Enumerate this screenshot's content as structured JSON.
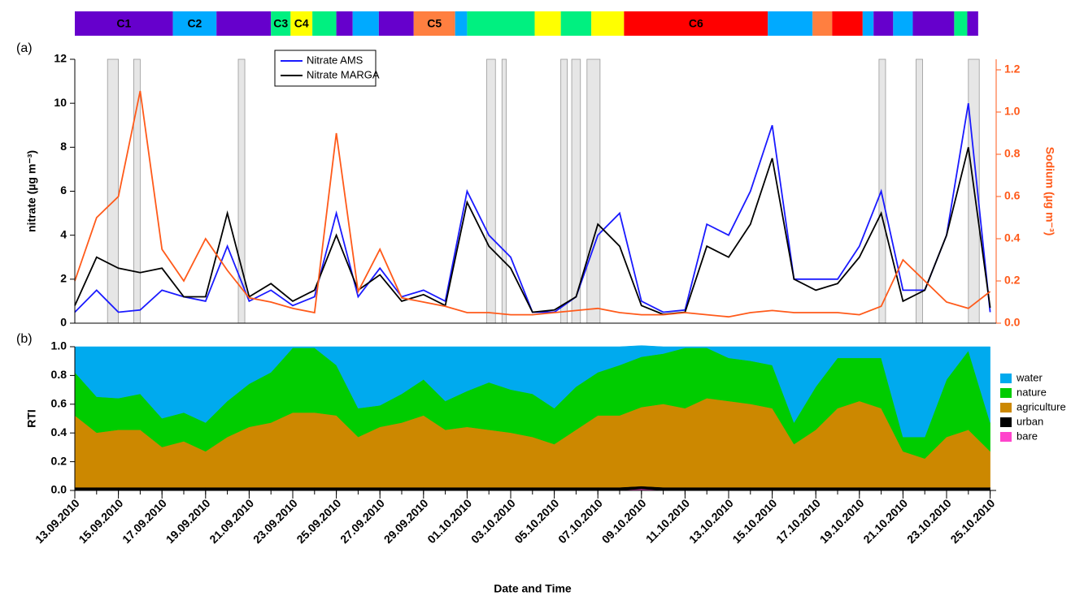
{
  "chart_data": [
    {
      "type": "timeline",
      "segments": [
        {
          "name": "C1",
          "color": "#6600cc",
          "days": 4.5
        },
        {
          "name": "C2",
          "color": "#00aaff",
          "days": 2.0
        },
        {
          "name": null,
          "color": "#6600cc",
          "days": 2.5
        },
        {
          "name": "C3",
          "color": "#00f080",
          "days": 0.9
        },
        {
          "name": "C4",
          "color": "#ffff00",
          "days": 1.0
        },
        {
          "name": null,
          "color": "#00f080",
          "days": 1.1
        },
        {
          "name": null,
          "color": "#6600cc",
          "days": 0.75
        },
        {
          "name": null,
          "color": "#00aaff",
          "days": 1.2
        },
        {
          "name": null,
          "color": "#6600cc",
          "days": 1.6
        },
        {
          "name": "C5",
          "color": "#ff7f40",
          "days": 1.9
        },
        {
          "name": null,
          "color": "#00aaff",
          "days": 0.55
        },
        {
          "name": null,
          "color": "#00f080",
          "days": 3.1
        },
        {
          "name": null,
          "color": "#ffff00",
          "days": 1.2
        },
        {
          "name": null,
          "color": "#00f080",
          "days": 1.4
        },
        {
          "name": null,
          "color": "#ffff00",
          "days": 1.5
        },
        {
          "name": "C6",
          "color": "#ff0000",
          "days": 6.6
        },
        {
          "name": null,
          "color": "#00aaff",
          "days": 2.05
        },
        {
          "name": null,
          "color": "#ff7f40",
          "days": 0.9
        },
        {
          "name": null,
          "color": "#ff0000",
          "days": 1.4
        },
        {
          "name": null,
          "color": "#00aaff",
          "days": 0.5
        },
        {
          "name": null,
          "color": "#6600cc",
          "days": 0.9
        },
        {
          "name": null,
          "color": "#00aaff",
          "days": 0.9
        },
        {
          "name": null,
          "color": "#6600cc",
          "days": 1.9
        },
        {
          "name": null,
          "color": "#00f080",
          "days": 0.6
        },
        {
          "name": null,
          "color": "#6600cc",
          "days": 0.5
        }
      ]
    },
    {
      "type": "line",
      "panel_label": "(a)",
      "y_label": "nitrate (µg m⁻³)",
      "y2_label": "Sodium (µg m⁻³)",
      "x": [
        "13.09.2010",
        "14.09.2010",
        "15.09.2010",
        "16.09.2010",
        "17.09.2010",
        "18.09.2010",
        "19.09.2010",
        "20.09.2010",
        "21.09.2010",
        "22.09.2010",
        "23.09.2010",
        "24.09.2010",
        "25.09.2010",
        "26.09.2010",
        "27.09.2010",
        "28.09.2010",
        "29.09.2010",
        "30.09.2010",
        "01.10.2010",
        "02.10.2010",
        "03.10.2010",
        "04.10.2010",
        "05.10.2010",
        "06.10.2010",
        "07.10.2010",
        "08.10.2010",
        "09.10.2010",
        "10.10.2010",
        "11.10.2010",
        "12.10.2010",
        "13.10.2010",
        "14.10.2010",
        "15.10.2010",
        "16.10.2010",
        "17.10.2010",
        "18.10.2010",
        "19.10.2010",
        "20.10.2010",
        "21.10.2010",
        "22.10.2010",
        "23.10.2010",
        "24.10.2010",
        "25.10.2010"
      ],
      "ylim": [
        0,
        12
      ],
      "yticks": [
        0,
        2,
        4,
        6,
        8,
        10,
        12
      ],
      "y2lim": [
        0,
        1.25
      ],
      "y2ticks": [
        {
          "value": 0,
          "label": "0.0"
        },
        0.2,
        0.4,
        0.6,
        0.8,
        {
          "value": 1,
          "label": "1.0"
        },
        1.2
      ],
      "shaded": [
        [
          1.5,
          2.0
        ],
        [
          2.7,
          3.0
        ],
        [
          7.5,
          7.8
        ],
        [
          18.9,
          19.3
        ],
        [
          19.6,
          19.8
        ],
        [
          22.3,
          22.6
        ],
        [
          22.8,
          23.2
        ],
        [
          23.5,
          24.1
        ],
        [
          36.9,
          37.2
        ],
        [
          38.6,
          38.9
        ],
        [
          41.0,
          41.5
        ]
      ],
      "series": [
        {
          "name": "Nitrate AMS",
          "color": "#1a1aff",
          "values": [
            0.5,
            1.5,
            0.5,
            0.6,
            1.5,
            1.2,
            1.0,
            3.5,
            1.0,
            1.5,
            0.8,
            1.2,
            5.0,
            1.2,
            2.5,
            1.2,
            1.5,
            1.0,
            6.0,
            4.0,
            3.0,
            0.5,
            0.5,
            1.2,
            4.0,
            5.0,
            1.0,
            0.5,
            0.6,
            4.5,
            4.0,
            6.0,
            9.0,
            2.0,
            2.0,
            2.0,
            3.5,
            6.0,
            1.5,
            1.5,
            4.0,
            10.0,
            0.5
          ]
        },
        {
          "name": "Nitrate MARGA",
          "color": "#000000",
          "values": [
            0.8,
            3.0,
            2.5,
            2.3,
            2.5,
            1.2,
            1.2,
            5.0,
            1.2,
            1.8,
            1.0,
            1.5,
            4.0,
            1.5,
            2.2,
            1.0,
            1.3,
            0.8,
            5.5,
            3.5,
            2.5,
            0.5,
            0.6,
            1.2,
            4.5,
            3.5,
            0.8,
            0.4,
            0.5,
            3.5,
            3.0,
            4.5,
            7.5,
            2.0,
            1.5,
            1.8,
            3.0,
            5.0,
            1.0,
            1.5,
            4.0,
            8.0,
            0.7
          ]
        },
        {
          "name": null,
          "color": "#ff5a1a",
          "axis": "y2",
          "values": [
            0.2,
            0.5,
            0.6,
            1.1,
            0.35,
            0.2,
            0.4,
            0.25,
            0.12,
            0.1,
            0.07,
            0.05,
            0.9,
            0.15,
            0.35,
            0.12,
            0.1,
            0.08,
            0.05,
            0.05,
            0.04,
            0.04,
            0.05,
            0.06,
            0.07,
            0.05,
            0.04,
            0.04,
            0.05,
            0.04,
            0.03,
            0.05,
            0.06,
            0.05,
            0.05,
            0.05,
            0.04,
            0.08,
            0.3,
            0.2,
            0.1,
            0.07,
            0.15
          ]
        }
      ]
    },
    {
      "type": "stacked_area",
      "panel_label": "(b)",
      "y_label": "RTI",
      "x_label": "Date and Time",
      "x": [
        "13.09.2010",
        "14.09.2010",
        "15.09.2010",
        "16.09.2010",
        "17.09.2010",
        "18.09.2010",
        "19.09.2010",
        "20.09.2010",
        "21.09.2010",
        "22.09.2010",
        "23.09.2010",
        "24.09.2010",
        "25.09.2010",
        "26.09.2010",
        "27.09.2010",
        "28.09.2010",
        "29.09.2010",
        "30.09.2010",
        "01.10.2010",
        "02.10.2010",
        "03.10.2010",
        "04.10.2010",
        "05.10.2010",
        "06.10.2010",
        "07.10.2010",
        "08.10.2010",
        "09.10.2010",
        "10.10.2010",
        "11.10.2010",
        "12.10.2010",
        "13.10.2010",
        "14.10.2010",
        "15.10.2010",
        "16.10.2010",
        "17.10.2010",
        "18.10.2010",
        "19.10.2010",
        "20.10.2010",
        "21.10.2010",
        "22.10.2010",
        "23.10.2010",
        "24.10.2010",
        "25.10.2010"
      ],
      "xticks": [
        "13.09.2010",
        "15.09.2010",
        "17.09.2010",
        "19.09.2010",
        "21.09.2010",
        "23.09.2010",
        "25.09.2010",
        "27.09.2010",
        "29.09.2010",
        "01.10.2010",
        "03.10.2010",
        "05.10.2010",
        "07.10.2010",
        "09.10.2010",
        "11.10.2010",
        "13.10.2010",
        "15.10.2010",
        "17.10.2010",
        "19.10.2010",
        "21.10.2010",
        "23.10.2010",
        "25.10.2010"
      ],
      "ylim": [
        0,
        1
      ],
      "yticks": [
        {
          "value": 0,
          "label": "0.0"
        },
        0.2,
        0.4,
        0.6,
        0.8,
        {
          "value": 1,
          "label": "1.0"
        }
      ],
      "series": [
        {
          "name": "bare",
          "color": "#ff44cc",
          "values": [
            0.002,
            0.002,
            0.002,
            0.002,
            0.002,
            0.002,
            0.002,
            0.002,
            0.002,
            0.002,
            0.002,
            0.002,
            0.002,
            0.002,
            0.002,
            0.002,
            0.002,
            0.002,
            0.002,
            0.002,
            0.002,
            0.002,
            0.002,
            0.002,
            0.002,
            0.002,
            0.01,
            0.002,
            0.002,
            0.002,
            0.002,
            0.002,
            0.002,
            0.002,
            0.002,
            0.002,
            0.002,
            0.002,
            0.002,
            0.002,
            0.002,
            0.002,
            0.002
          ]
        },
        {
          "name": "urban",
          "color": "#000000",
          "values": [
            0.02,
            0.02,
            0.02,
            0.02,
            0.02,
            0.02,
            0.02,
            0.02,
            0.02,
            0.02,
            0.02,
            0.02,
            0.02,
            0.02,
            0.02,
            0.02,
            0.02,
            0.02,
            0.02,
            0.02,
            0.02,
            0.02,
            0.02,
            0.02,
            0.02,
            0.02,
            0.02,
            0.02,
            0.02,
            0.02,
            0.02,
            0.02,
            0.02,
            0.02,
            0.02,
            0.02,
            0.02,
            0.02,
            0.02,
            0.02,
            0.02,
            0.02,
            0.02
          ]
        },
        {
          "name": "agriculture",
          "color": "#cc8800",
          "values": [
            0.5,
            0.38,
            0.4,
            0.4,
            0.28,
            0.32,
            0.25,
            0.35,
            0.42,
            0.45,
            0.52,
            0.52,
            0.5,
            0.35,
            0.42,
            0.45,
            0.5,
            0.4,
            0.42,
            0.4,
            0.38,
            0.35,
            0.3,
            0.4,
            0.5,
            0.5,
            0.55,
            0.58,
            0.55,
            0.62,
            0.6,
            0.58,
            0.55,
            0.3,
            0.4,
            0.55,
            0.6,
            0.55,
            0.25,
            0.2,
            0.35,
            0.4,
            0.25
          ]
        },
        {
          "name": "nature",
          "color": "#00cc00",
          "values": [
            0.3,
            0.25,
            0.22,
            0.25,
            0.2,
            0.2,
            0.2,
            0.25,
            0.3,
            0.35,
            0.45,
            0.45,
            0.35,
            0.2,
            0.15,
            0.2,
            0.25,
            0.2,
            0.25,
            0.33,
            0.3,
            0.3,
            0.25,
            0.3,
            0.3,
            0.35,
            0.35,
            0.35,
            0.42,
            0.35,
            0.3,
            0.3,
            0.3,
            0.15,
            0.3,
            0.35,
            0.3,
            0.35,
            0.1,
            0.15,
            0.4,
            0.55,
            0.2
          ]
        },
        {
          "name": "water",
          "color": "#00aaee",
          "values": [
            0.178,
            0.348,
            0.358,
            0.328,
            0.498,
            0.458,
            0.528,
            0.378,
            0.258,
            0.178,
            0.008,
            0.008,
            0.128,
            0.428,
            0.408,
            0.328,
            0.228,
            0.378,
            0.308,
            0.248,
            0.298,
            0.328,
            0.428,
            0.278,
            0.178,
            0.128,
            0.078,
            0.048,
            0.008,
            0.008,
            0.078,
            0.098,
            0.128,
            0.528,
            0.278,
            0.078,
            0.078,
            0.078,
            0.628,
            0.628,
            0.228,
            0.028,
            0.528
          ]
        }
      ]
    }
  ]
}
